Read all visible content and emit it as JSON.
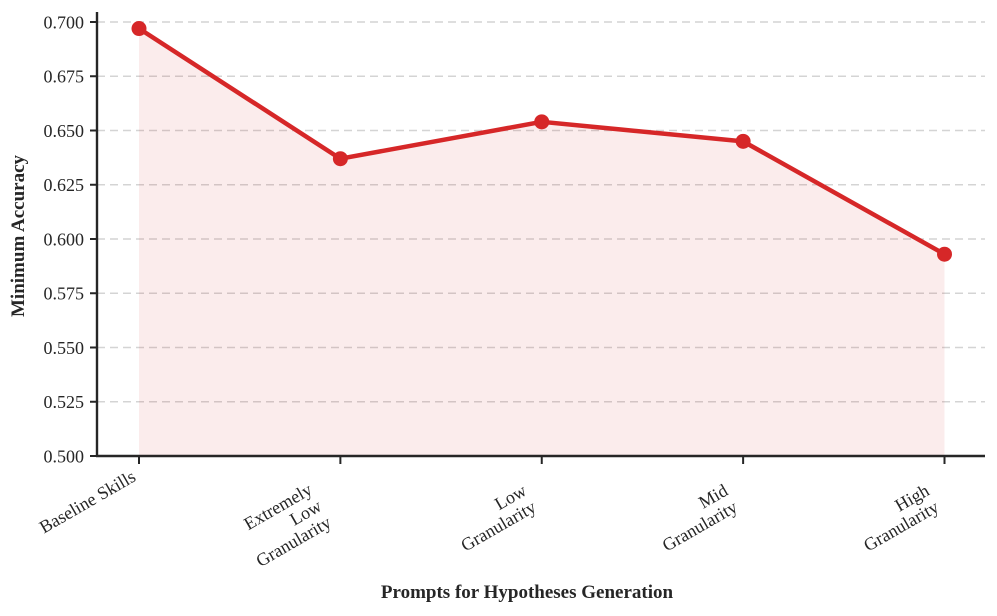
{
  "figure": {
    "kind": "matplotlib-style line chart",
    "background_color": "#ffffff"
  },
  "chart_data": {
    "type": "line",
    "title": "",
    "xlabel": "Prompts for Hypotheses Generation",
    "ylabel": "Minimum Accuracy",
    "categories": [
      [
        "Baseline Skills"
      ],
      [
        "Extremely",
        "Low",
        "Granularity"
      ],
      [
        "Low",
        "Granularity"
      ],
      [
        "Mid",
        "Granularity"
      ],
      [
        "High",
        "Granularity"
      ]
    ],
    "values": [
      0.697,
      0.637,
      0.654,
      0.645,
      0.593
    ],
    "series_name": "Minimum Accuracy",
    "ylim": [
      0.5,
      0.7
    ],
    "yticks": [
      0.5,
      0.525,
      0.55,
      0.575,
      0.6,
      0.625,
      0.65,
      0.675,
      0.7
    ],
    "ytick_labels": [
      "0.500",
      "0.525",
      "0.550",
      "0.575",
      "0.600",
      "0.625",
      "0.650",
      "0.675",
      "0.700"
    ],
    "xtick_label_rotation_deg": 30,
    "grid": "horizontal-dashed",
    "legend": "none",
    "marker": "circle",
    "area_fill_to_baseline": true,
    "colors": {
      "line": "#d62728",
      "marker": "#d62728",
      "area_fill": "rgba(214,39,40,0.09)",
      "gridline": "#d4d4d4",
      "axis_spine": "#262626",
      "text": "#262626"
    }
  }
}
